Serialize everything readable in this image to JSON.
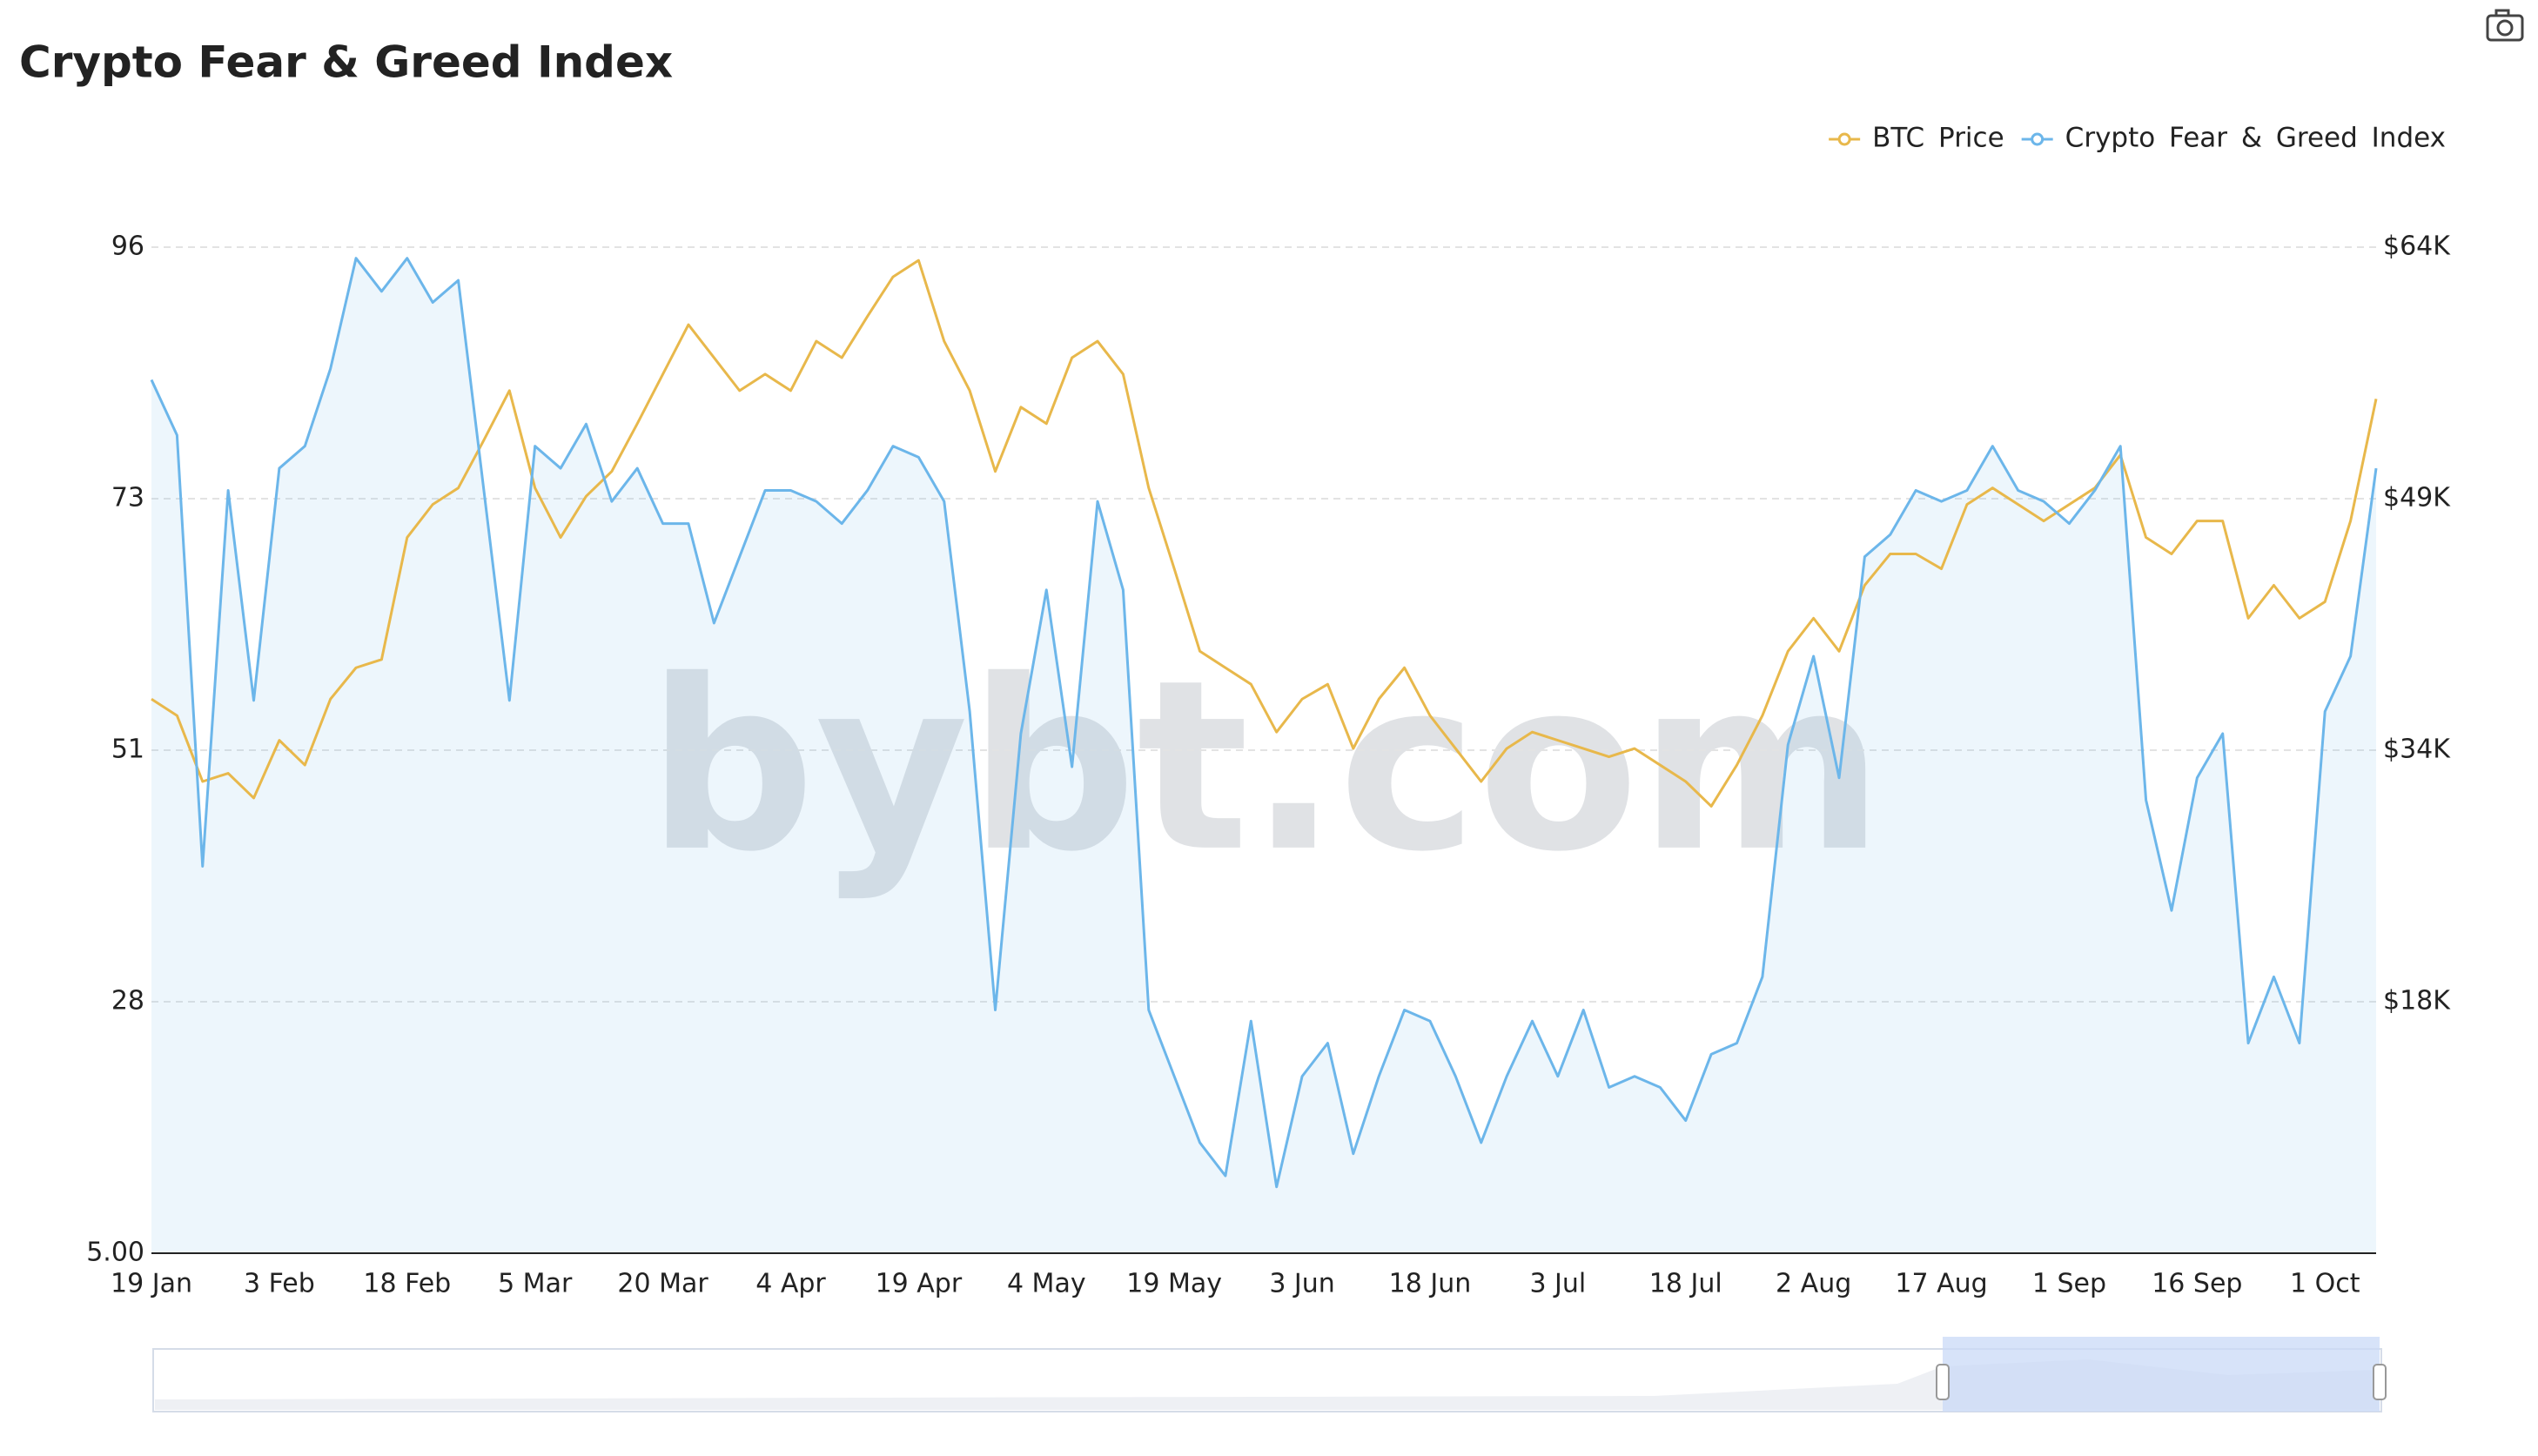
{
  "chart_data": {
    "type": "line",
    "title": "Crypto Fear & Greed Index",
    "watermark": "bybt.com",
    "categories": [
      "19 Jan",
      null,
      null,
      null,
      null,
      "3 Feb",
      null,
      null,
      null,
      null,
      "18 Feb",
      null,
      null,
      null,
      null,
      "5 Mar",
      null,
      null,
      null,
      null,
      "20 Mar",
      null,
      null,
      null,
      null,
      "4 Apr",
      null,
      null,
      null,
      null,
      "19 Apr",
      null,
      null,
      null,
      null,
      "4 May",
      null,
      null,
      null,
      null,
      "19 May",
      null,
      null,
      null,
      null,
      "3 Jun",
      null,
      null,
      null,
      null,
      "18 Jun",
      null,
      null,
      null,
      null,
      "3 Jul",
      null,
      null,
      null,
      null,
      "18 Jul",
      null,
      null,
      null,
      null,
      "2 Aug",
      null,
      null,
      null,
      null,
      "17 Aug",
      null,
      null,
      null,
      null,
      "1 Sep",
      null,
      null,
      null,
      null,
      "16 Sep",
      null,
      null,
      null,
      null,
      "1 Oct",
      null,
      null
    ],
    "series": [
      {
        "name": "BTC Price",
        "color": "#e8b84b",
        "axis": "y2",
        "values": [
          36600,
          35600,
          31600,
          32100,
          30600,
          34100,
          32600,
          36600,
          38500,
          39000,
          46400,
          48400,
          49400,
          52300,
          55300,
          49400,
          46400,
          48900,
          50400,
          53300,
          56300,
          59300,
          57300,
          55300,
          56300,
          55300,
          58300,
          57300,
          59800,
          62200,
          63200,
          58300,
          55300,
          50400,
          54300,
          53300,
          57300,
          58300,
          56300,
          49400,
          44500,
          39500,
          38500,
          37500,
          34600,
          36600,
          37500,
          33600,
          36600,
          38500,
          35600,
          33600,
          31600,
          33600,
          34600,
          34100,
          33600,
          33100,
          33600,
          32600,
          31600,
          30100,
          32600,
          35600,
          39500,
          41500,
          39500,
          43500,
          45400,
          45400,
          44500,
          48400,
          49400,
          48400,
          47400,
          48400,
          49400,
          51400,
          46400,
          45400,
          47400,
          47400,
          41500,
          43500,
          41500,
          42500,
          47400,
          54800
        ]
      },
      {
        "name": "Crypto Fear & Greed Index",
        "color": "#6cb6ea",
        "area": true,
        "values": [
          84,
          79,
          40,
          74,
          55,
          76,
          78,
          85,
          95,
          92,
          95,
          91,
          93,
          74,
          55,
          78,
          76,
          80,
          73,
          76,
          71,
          71,
          62,
          68,
          74,
          74,
          73,
          71,
          74,
          78,
          77,
          73,
          54,
          27,
          52,
          65,
          49,
          73,
          65,
          27,
          21,
          15,
          12,
          26,
          11,
          21,
          24,
          14,
          21,
          27,
          26,
          21,
          15,
          21,
          26,
          21,
          27,
          20,
          21,
          20,
          17,
          23,
          24,
          30,
          51,
          59,
          48,
          68,
          70,
          74,
          73,
          74,
          78,
          74,
          73,
          71,
          74,
          78,
          46,
          36,
          48,
          52,
          24,
          30,
          24,
          54,
          59,
          76
        ]
      }
    ],
    "ylim": [
      5,
      96
    ],
    "yticks": [
      {
        "value": 5,
        "label": "5.00"
      },
      {
        "value": 27.75,
        "label": "28"
      },
      {
        "value": 50.5,
        "label": "51"
      },
      {
        "value": 73.25,
        "label": "73"
      },
      96
    ],
    "y2lim": [
      3000,
      64000
    ],
    "y2ticks": [
      {
        "value": 18250,
        "label": "$18K"
      },
      {
        "value": 33500,
        "label": "$34K"
      },
      {
        "value": 48750,
        "label": "$49K"
      },
      {
        "value": 64000,
        "label": "$64K"
      }
    ],
    "grid": true,
    "legend": "top-right"
  }
}
